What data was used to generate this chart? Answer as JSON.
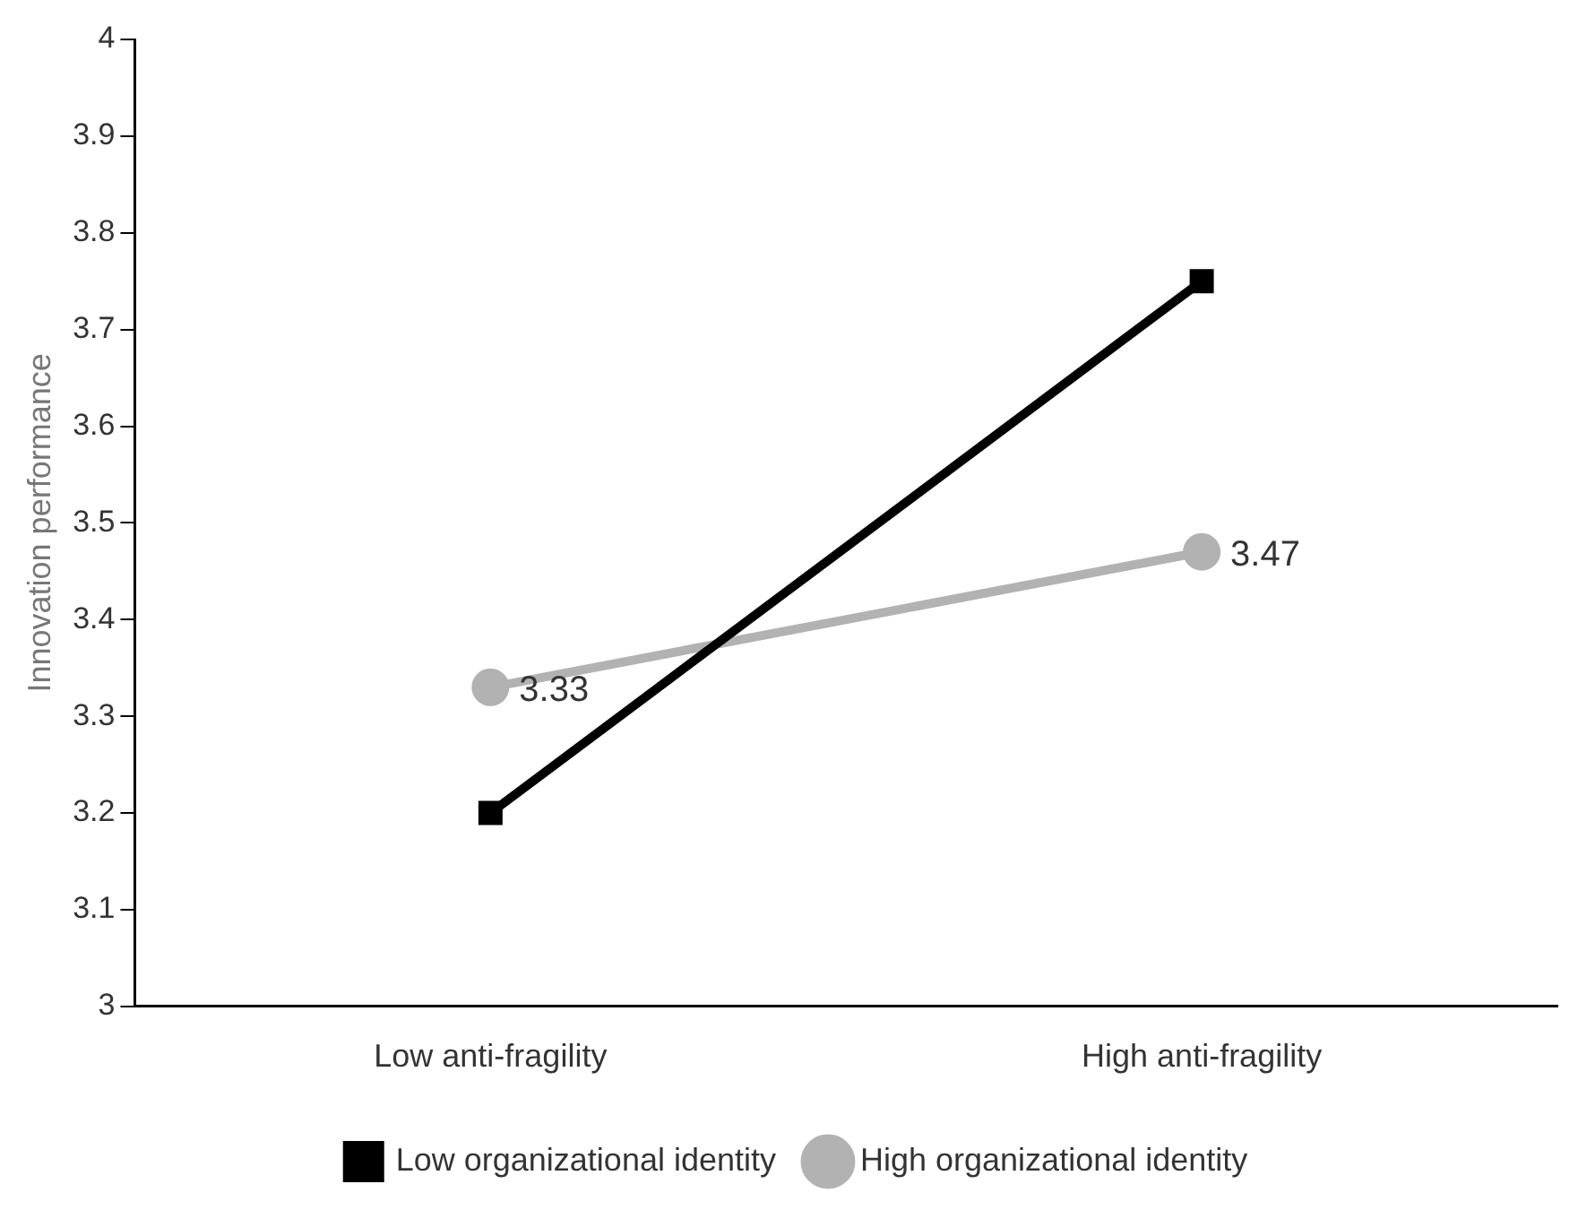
{
  "chart_data": {
    "type": "line",
    "ylabel": "Innovation performance",
    "categories": [
      "Low anti-fragility",
      "High anti-fragility"
    ],
    "series": [
      {
        "name": "Low organizational identity",
        "color": "#000000",
        "values": [
          3.2,
          3.75
        ],
        "marker": "square"
      },
      {
        "name": "High organizational identity",
        "color": "#b2b2b2",
        "values": [
          3.33,
          3.47
        ],
        "marker": "circle",
        "value_labels": [
          "3.33",
          "3.47"
        ]
      }
    ],
    "ylim": [
      3,
      4
    ],
    "yticks": [
      3,
      3.1,
      3.2,
      3.3,
      3.4,
      3.5,
      3.6,
      3.7,
      3.8,
      3.9,
      4
    ],
    "grid": false,
    "legend": "bottom",
    "line_style": "solid"
  }
}
